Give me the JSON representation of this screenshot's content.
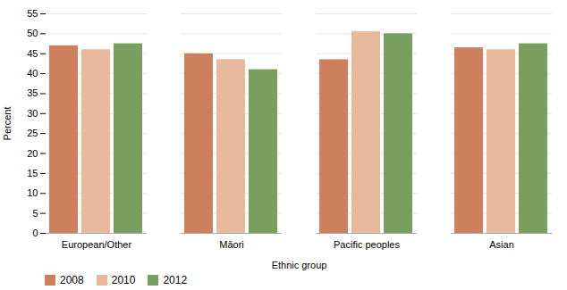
{
  "chart_data": {
    "type": "bar",
    "categories": [
      "European/Other",
      "Māori",
      "Pacific peoples",
      "Asian"
    ],
    "series": [
      {
        "name": "2008",
        "color": "#cd7f5e",
        "values": [
          47.0,
          45.0,
          43.5,
          46.5
        ]
      },
      {
        "name": "2010",
        "color": "#e8b89a",
        "values": [
          46.0,
          43.5,
          50.5,
          46.0
        ]
      },
      {
        "name": "2012",
        "color": "#7a9e5e",
        "values": [
          47.5,
          41.0,
          50.0,
          47.5
        ]
      }
    ],
    "xlabel": "Ethnic group",
    "ylabel": "Percent",
    "ylim": [
      0,
      55
    ],
    "yticks": [
      0,
      5,
      10,
      15,
      20,
      25,
      30,
      35,
      40,
      45,
      50,
      55
    ],
    "grid": true,
    "legend": "lower left"
  }
}
